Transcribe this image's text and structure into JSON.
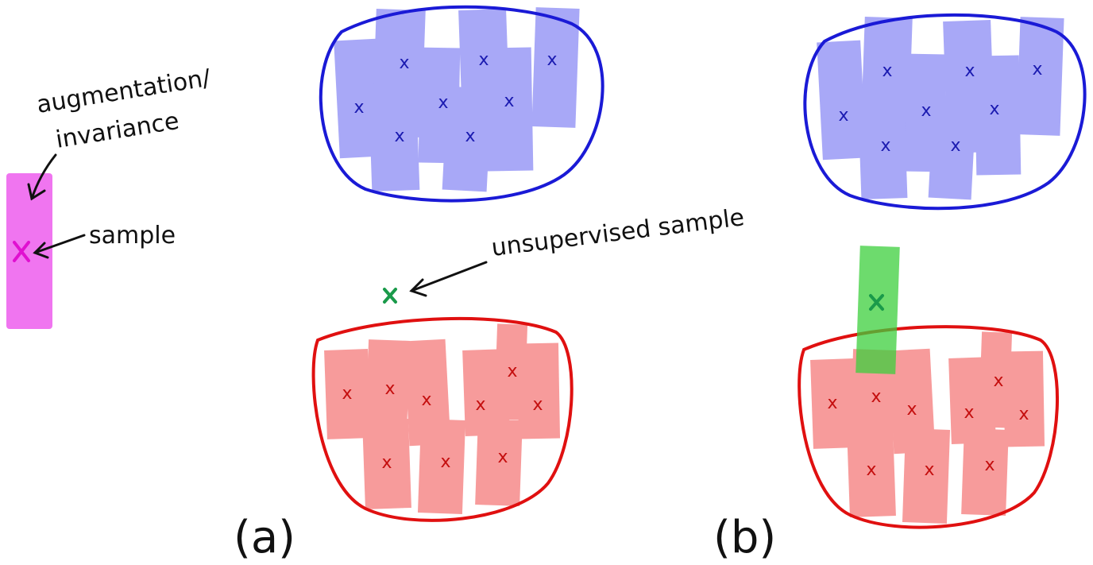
{
  "labels": {
    "augmentation_line1": "augmentation/",
    "augmentation_line2": "invariance",
    "sample": "sample",
    "unsupervised_sample": "unsupervised sample",
    "panel_a": "(a)",
    "panel_b": "(b)"
  },
  "colors": {
    "blue_outline": "#1a1ad6",
    "blue_fill": "#6f6ff2",
    "blue_mark": "#1a1ab0",
    "red_outline": "#e01010",
    "red_fill": "#f25a5a",
    "red_mark": "#c40e0e",
    "green_fill": "#3ccf3c",
    "green_mark": "#1a9a4a",
    "magenta_fill": "#ee66ee",
    "magenta_mark": "#e010d0",
    "ink": "#111111"
  }
}
